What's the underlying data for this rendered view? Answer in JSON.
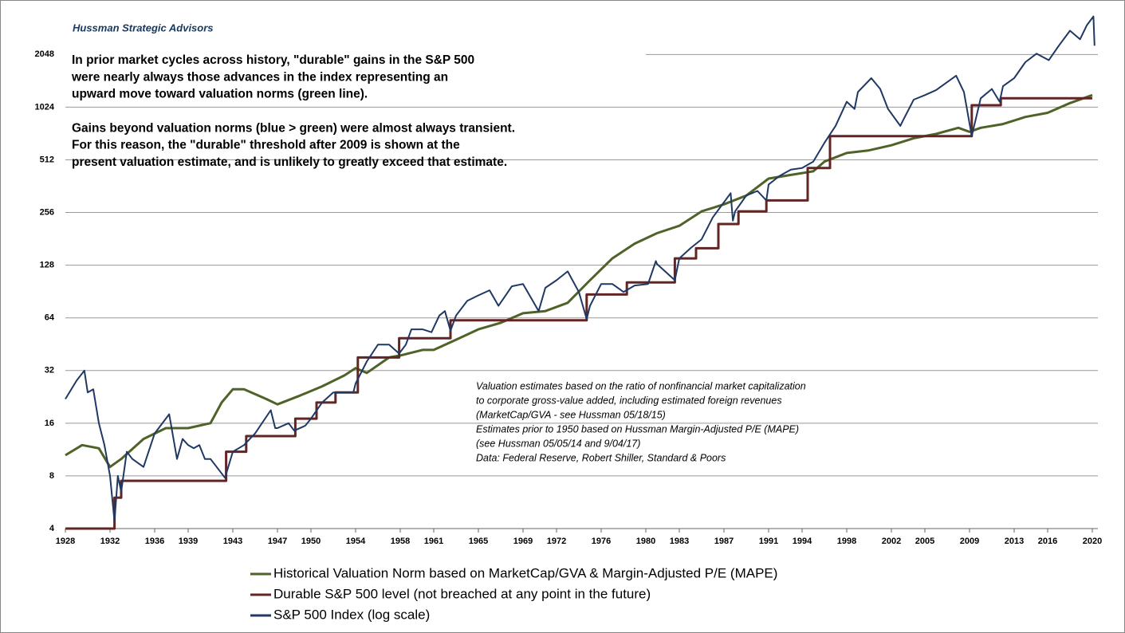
{
  "chart_data": {
    "type": "line",
    "title": "Hussman  Strategic Advisors",
    "annotation": [
      "In prior market cycles across history, \"durable\" gains in the S&P 500",
      "were nearly always those advances in the index representing an",
      "upward move toward valuation norms (green line).",
      "",
      "Gains beyond valuation norms (blue > green) were almost always transient.",
      "For this reason, the \"durable\" threshold after 2009 is shown at the",
      "present valuation estimate, and is unlikely to greatly exceed that estimate."
    ],
    "note": [
      "Valuation estimates based on the ratio of nonfinancial  market capitalization",
      "to corporate gross-value added, including estimated foreign revenues",
      "(MarketCap/GVA - see Hussman 05/18/15)",
      "Estimates prior to 1950  based on Hussman Margin-Adjusted P/E (MAPE)",
      "(see Hussman 05/05/14  and 9/04/17)",
      "Data: Federal Reserve, Robert Shiller,  Standard & Poors"
    ],
    "log_scale": true,
    "grid": true,
    "xlim": [
      1928,
      2020
    ],
    "xticks": [
      1928,
      1932,
      1936,
      1939,
      1943,
      1947,
      1950,
      1954,
      1958,
      1961,
      1965,
      1969,
      1972,
      1976,
      1980,
      1983,
      1987,
      1991,
      1994,
      1998,
      2002,
      2005,
      2009,
      2013,
      2016,
      2020
    ],
    "ylim": [
      4,
      3400
    ],
    "yticks": [
      4,
      8,
      16,
      32,
      64,
      128,
      256,
      512,
      1024,
      2048
    ],
    "series": [
      {
        "name": "Historical Valuation Norm based on MarketCap/GVA & Margin-Adjusted P/E (MAPE)",
        "color": "#4f6228",
        "x": [
          1928,
          1929.5,
          1931,
          1932,
          1933,
          1935,
          1937,
          1939,
          1941,
          1942,
          1943,
          1944,
          1946,
          1947,
          1949,
          1951,
          1953,
          1954,
          1955,
          1957,
          1958,
          1960,
          1961,
          1963,
          1965,
          1967,
          1969,
          1971,
          1973,
          1975,
          1977,
          1979,
          1981,
          1983,
          1985,
          1987,
          1989,
          1991,
          1993,
          1995,
          1996,
          1998,
          2000,
          2002,
          2004,
          2006,
          2008,
          2009,
          2010,
          2012,
          2014,
          2016,
          2018,
          2020
        ],
        "values": [
          10.5,
          12,
          11.5,
          9,
          10,
          13,
          15,
          15,
          16,
          21,
          25,
          25,
          22,
          20.5,
          23,
          26,
          30,
          33,
          31,
          38,
          39,
          42,
          42,
          48,
          55,
          60,
          68,
          70,
          78,
          105,
          140,
          170,
          195,
          215,
          260,
          285,
          320,
          400,
          420,
          440,
          500,
          560,
          580,
          620,
          680,
          720,
          780,
          740,
          780,
          820,
          900,
          950,
          1080,
          1200
        ]
      },
      {
        "name": "Durable S&P 500 level (not breached at any point in the future)",
        "color": "#632523",
        "x": [
          1928,
          1932.4,
          1932.4,
          1933,
          1933,
          1942.4,
          1942.4,
          1944.2,
          1944.2,
          1948.6,
          1948.6,
          1950.5,
          1950.5,
          1952.2,
          1952.2,
          1954.2,
          1954.2,
          1957.9,
          1957.9,
          1962.5,
          1962.5,
          1974.7,
          1974.7,
          1978.3,
          1978.3,
          1982.6,
          1982.6,
          1984.5,
          1984.5,
          1986.5,
          1986.5,
          1988.3,
          1988.3,
          1990.8,
          1990.8,
          1994.5,
          1994.5,
          1996.5,
          1996.5,
          2009.2,
          2009.2,
          2011.8,
          2011.8,
          2020
        ],
        "values": [
          4,
          4,
          6,
          6,
          7.5,
          7.5,
          11,
          11,
          13.5,
          13.5,
          17,
          17,
          21,
          21,
          24,
          24,
          38,
          38,
          49,
          49,
          62,
          62,
          87,
          87,
          102,
          102,
          140,
          140,
          160,
          160,
          220,
          220,
          260,
          260,
          300,
          300,
          460,
          460,
          700,
          700,
          1050,
          1050,
          1150,
          1150
        ]
      },
      {
        "name": "S&P 500 Index (log scale)",
        "color": "#1f3864",
        "x": [
          1928,
          1929,
          1929.7,
          1930,
          1930.5,
          1931,
          1931.5,
          1932,
          1932.4,
          1932.7,
          1933,
          1933.5,
          1934,
          1935,
          1936,
          1937,
          1937.3,
          1938,
          1938.5,
          1939,
          1939.5,
          1940,
          1940.5,
          1941,
          1942.3,
          1943,
          1944,
          1945,
          1946.4,
          1946.8,
          1947,
          1948,
          1948.5,
          1949.5,
          1950,
          1951,
          1952,
          1953,
          1953.8,
          1954,
          1955,
          1956,
          1957,
          1957.9,
          1958.5,
          1959,
          1960,
          1960.8,
          1961.5,
          1962,
          1962.5,
          1963,
          1964,
          1965,
          1966,
          1966.8,
          1968,
          1969,
          1970.4,
          1971,
          1972,
          1973,
          1974,
          1974.7,
          1975,
          1976,
          1977,
          1978,
          1979,
          1980.2,
          1980.9,
          1981,
          1982.6,
          1983,
          1984,
          1985,
          1986,
          1987.6,
          1987.8,
          1988,
          1989,
          1990,
          1990.8,
          1991,
          1992,
          1993,
          1994,
          1995,
          1996,
          1997,
          1998,
          1998.7,
          1999,
          2000.2,
          2001,
          2001.7,
          2002.8,
          2003,
          2004,
          2005,
          2006,
          2007.8,
          2008.5,
          2009.2,
          2010,
          2011,
          2011.7,
          2012,
          2013,
          2014,
          2015,
          2016.1,
          2017,
          2018,
          2018.9,
          2019.5,
          2020.1,
          2020.2
        ],
        "values": [
          22,
          28,
          32,
          24,
          25,
          16,
          12,
          8,
          4.4,
          8,
          6.5,
          11,
          10,
          9,
          14,
          17,
          18,
          10,
          13,
          12,
          11.5,
          12,
          10,
          10,
          7.8,
          11,
          12,
          14,
          19,
          15,
          15,
          16,
          14.5,
          15.5,
          17,
          21,
          24,
          24,
          24,
          27,
          36,
          45,
          45,
          40,
          45,
          55,
          55,
          53,
          66,
          70,
          54,
          66,
          80,
          86,
          92,
          75,
          97,
          100,
          70,
          95,
          105,
          118,
          90,
          63,
          75,
          100,
          100,
          90,
          98,
          100,
          135,
          130,
          105,
          140,
          160,
          180,
          240,
          330,
          230,
          260,
          320,
          340,
          300,
          370,
          415,
          450,
          460,
          500,
          640,
          800,
          1100,
          1000,
          1250,
          1500,
          1300,
          1000,
          800,
          850,
          1130,
          1200,
          1280,
          1550,
          1250,
          700,
          1150,
          1300,
          1100,
          1350,
          1500,
          1850,
          2070,
          1900,
          2300,
          2800,
          2500,
          3000,
          3380,
          2300
        ]
      }
    ]
  }
}
